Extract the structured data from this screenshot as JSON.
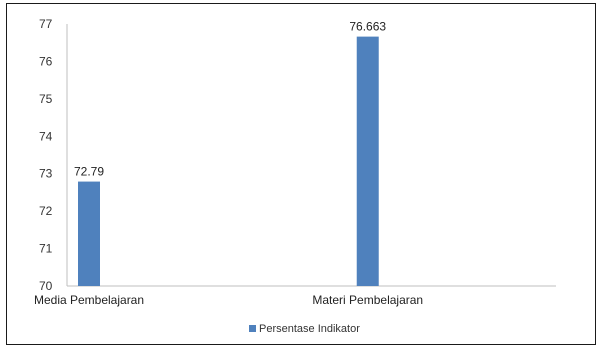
{
  "chart_data": {
    "type": "bar",
    "categories": [
      "Media Pembelajaran",
      "Materi Pembelajaran"
    ],
    "series": [
      {
        "name": "Persentase Indikator",
        "values": [
          72.79,
          76.663
        ],
        "data_labels": [
          "72.79",
          "76.663"
        ]
      }
    ],
    "ylim": [
      70,
      77
    ],
    "y_ticks": [
      70,
      71,
      72,
      73,
      74,
      75,
      76,
      77
    ],
    "grid": false,
    "legend_position": "bottom",
    "colors": {
      "bar": "#4f81bd",
      "axis": "#bfbfbf"
    }
  }
}
